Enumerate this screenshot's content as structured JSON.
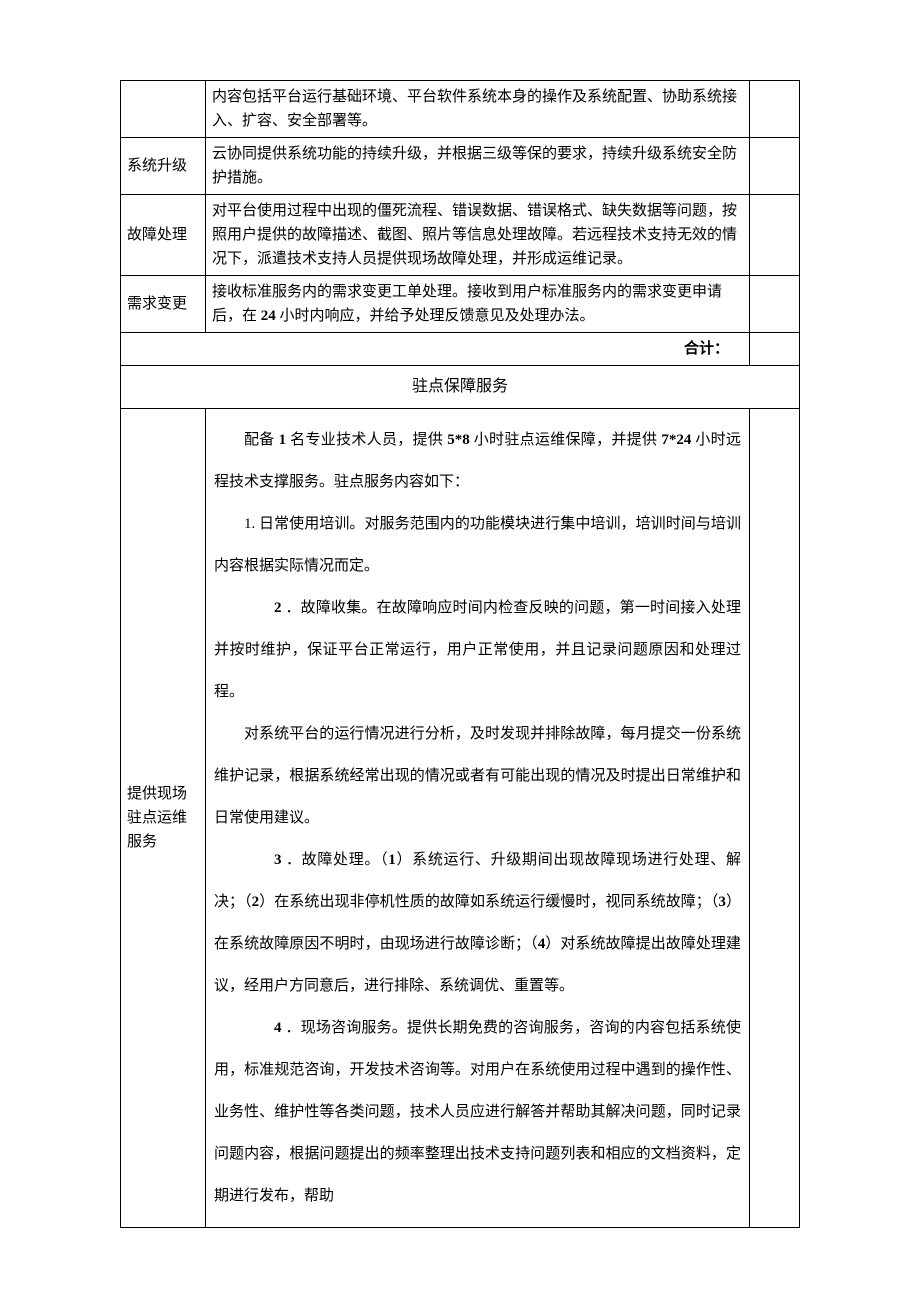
{
  "rows": {
    "row1": {
      "label": "",
      "content": "内容包括平台运行基础环境、平台软件系统本身的操作及系统配置、协助系统接入、扩容、安全部署等。"
    },
    "row2": {
      "label": "系统升级",
      "content": "云协同提供系统功能的持续升级，并根据三级等保的要求，持续升级系统安全防护措施。"
    },
    "row3": {
      "label": "故障处理",
      "content": "对平台使用过程中出现的僵死流程、错误数据、错误格式、缺失数据等问题，按照用户提供的故障描述、截图、照片等信息处理故障。若远程技术支持无效的情况下，派遣技术支持人员提供现场故障处理，并形成运维记录。"
    },
    "row4": {
      "label": "需求变更",
      "content_pre": "接收标准服务内的需求变更工单处理。接收到用户标准服务内的需求变更申请后，在 ",
      "content_bold": "24",
      "content_post": " 小时内响应，并给予处理反馈意见及处理办法。"
    },
    "total": "合计：",
    "section_header": "驻点保障服务",
    "long": {
      "label": "提供现场驻点运维服务",
      "p1_pre": "配备 ",
      "p1_b1": "1",
      "p1_mid1": " 名专业技术人员，提供 ",
      "p1_b2": "5*8",
      "p1_mid2": " 小时驻点运维保障，并提供 ",
      "p1_b3": "7*24",
      "p1_post": " 小时远程技术支撑服务。驻点服务内容如下：",
      "p2": "1. 日常使用培训。对服务范围内的功能模块进行集中培训，培训时间与培训内容根据实际情况而定。",
      "p3_num": "2",
      "p3_text": " ．故障收集。在故障响应时间内检查反映的问题，第一时间接入处理并按时维护，保证平台正常运行，用户正常使用，并且记录问题原因和处理过程。",
      "p4": "对系统平台的运行情况进行分析，及时发现并排除故障，每月提交一份系统维护记录，根据系统经常出现的情况或者有可能出现的情况及时提出日常维护和日常使用建议。",
      "p5_num": "3",
      "p5_t1": " ．故障处理。（",
      "p5_b1": "1",
      "p5_t2": "）系统运行、升级期间出现故障现场进行处理、解决；（",
      "p5_b2": "2",
      "p5_t3": "）在系统出现非停机性质的故障如系统运行缓慢时，视同系统故障；（",
      "p5_b3": "3",
      "p5_t4": "）在系统故障原因不明时，由现场进行故障诊断；（",
      "p5_b4": "4",
      "p5_t5": "）对系统故障提出故障处理建议，经用户方同意后，进行排除、系统调优、重置等。",
      "p6_num": "4",
      "p6_text": " ．现场咨询服务。提供长期免费的咨询服务，咨询的内容包括系统使用，标准规范咨询，开发技术咨询等。对用户在系统使用过程中遇到的操作性、业务性、维护性等各类问题，技术人员应进行解答并帮助其解决问题，同时记录问题内容，根据问题提出的频率整理出技术支持问题列表和相应的文档资料，定期进行发布，帮助"
    }
  }
}
